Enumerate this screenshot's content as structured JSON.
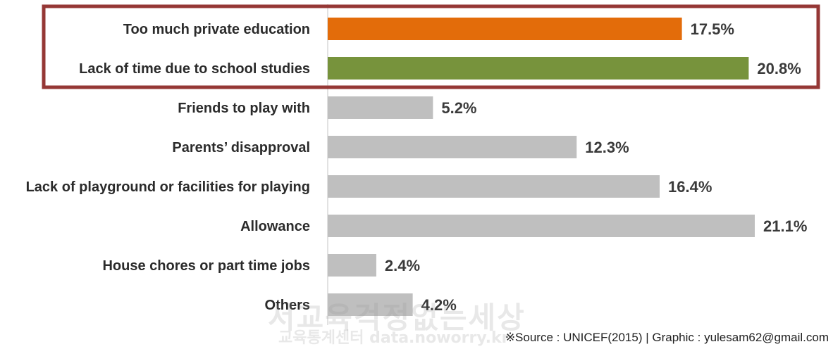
{
  "chart_data": {
    "type": "bar",
    "orientation": "horizontal",
    "categories": [
      "Too much private education",
      "Lack of time due to school studies",
      "Friends to play with",
      "Parents’ disapproval",
      "Lack of playground or facilities for playing",
      "Allowance",
      "House chores or part time jobs",
      "Others"
    ],
    "values": [
      17.5,
      20.8,
      5.2,
      12.3,
      16.4,
      21.1,
      2.4,
      4.2
    ],
    "value_labels": [
      "17.5%",
      "20.8%",
      "5.2%",
      "12.3%",
      "16.4%",
      "21.1%",
      "2.4%",
      "4.2%"
    ],
    "unit": "%",
    "xlim": [
      0,
      21.1
    ],
    "highlighted": [
      "Too much private education",
      "Lack of time due to school studies"
    ],
    "grid": false,
    "colors": {
      "bars": [
        "#e36c0a",
        "#77933c",
        "#bfbfbf",
        "#bfbfbf",
        "#bfbfbf",
        "#bfbfbf",
        "#bfbfbf",
        "#bfbfbf"
      ],
      "highlight_box": "#953735",
      "axis": "#d9d9d9"
    }
  },
  "watermark": {
    "main": "서교육걱정없는세상",
    "sub": "교육통계센터 data.noworry.kr"
  },
  "source": "※Source : UNICEF(2015) | Graphic : yulesam62@gmail.com"
}
